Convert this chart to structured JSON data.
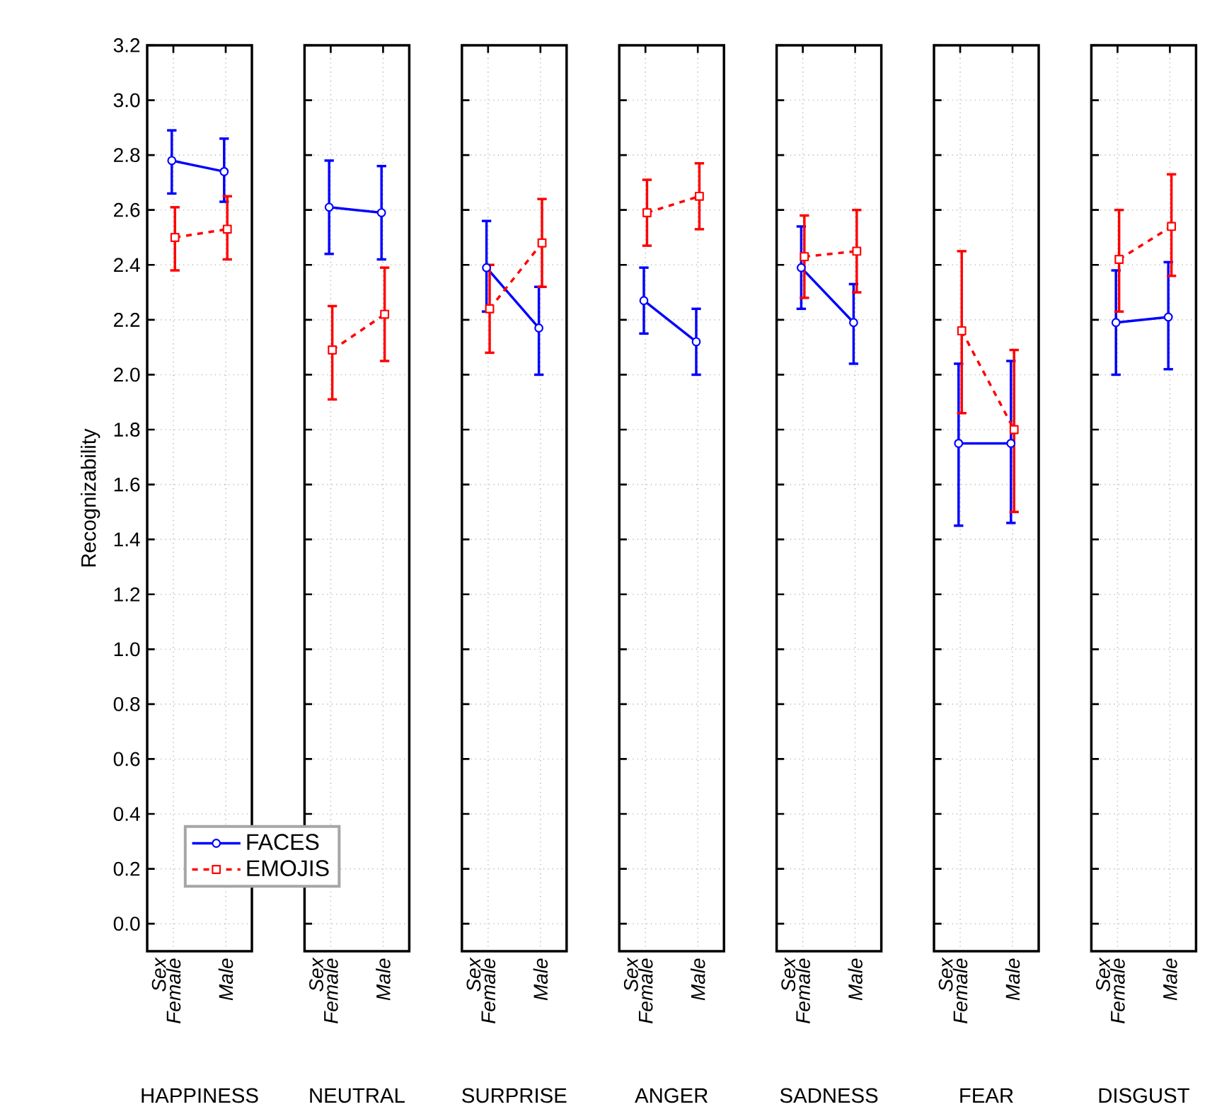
{
  "chart_data": [
    {
      "type": "line",
      "title": "HAPPINESS",
      "annotations": [
        "Sex"
      ],
      "ylabel": "Recognizability",
      "categories": [
        "Female",
        "Male"
      ],
      "ylim": [
        -0.1,
        3.2
      ],
      "yticks": [
        {
          "value": 0,
          "label": "0.0"
        },
        {
          "value": 0.2,
          "label": "0.2"
        },
        {
          "value": 0.4,
          "label": "0.4"
        },
        {
          "value": 0.6,
          "label": "0.6"
        },
        {
          "value": 0.8,
          "label": "0.8"
        },
        {
          "value": 1,
          "label": "1.0"
        },
        {
          "value": 1.2,
          "label": "1.2"
        },
        {
          "value": 1.4,
          "label": "1.4"
        },
        {
          "value": 1.6,
          "label": "1.6"
        },
        {
          "value": 1.8,
          "label": "1.8"
        },
        {
          "value": 2,
          "label": "2.0"
        },
        {
          "value": 2.2,
          "label": "2.2"
        },
        {
          "value": 2.4,
          "label": "2.4"
        },
        {
          "value": 2.6,
          "label": "2.6"
        },
        {
          "value": 2.8,
          "label": "2.8"
        },
        {
          "value": 3,
          "label": "3.0"
        },
        {
          "value": 3.2,
          "label": "3.2"
        }
      ],
      "grid": true,
      "legend": "bottom right",
      "series": [
        {
          "name": "FACES",
          "color": "#0000ff",
          "marker": "circle",
          "line_style": "solid",
          "values": [
            2.78,
            2.74
          ],
          "errors": [
            [
              2.66,
              2.89
            ],
            [
              2.63,
              2.86
            ]
          ]
        },
        {
          "name": "EMOJIS",
          "color": "#ff0000",
          "marker": "square",
          "line_style": "dashed",
          "values": [
            2.5,
            2.53
          ],
          "errors": [
            [
              2.38,
              2.61
            ],
            [
              2.42,
              2.65
            ]
          ]
        }
      ]
    },
    {
      "type": "line",
      "title": "NEUTRAL",
      "annotations": [
        "Sex"
      ],
      "categories": [
        "Female",
        "Male"
      ],
      "ylim": [
        -0.1,
        3.2
      ],
      "yticks": [
        0,
        0.2,
        0.4,
        0.6,
        0.8,
        1,
        1.2,
        1.4,
        1.6,
        1.8,
        2,
        2.2,
        2.4,
        2.6,
        2.8,
        3,
        3.2
      ],
      "tick_labels": "x",
      "grid": true,
      "series": [
        {
          "color": "#0000ff",
          "marker": "circle",
          "line_style": "solid",
          "values": [
            2.61,
            2.59
          ],
          "errors": [
            [
              2.44,
              2.78
            ],
            [
              2.42,
              2.76
            ]
          ]
        },
        {
          "color": "#ff0000",
          "marker": "square",
          "line_style": "dashed",
          "values": [
            2.09,
            2.22
          ],
          "errors": [
            [
              1.91,
              2.25
            ],
            [
              2.05,
              2.39
            ]
          ]
        }
      ]
    },
    {
      "type": "line",
      "title": "SURPRISE",
      "annotations": [
        "Sex"
      ],
      "categories": [
        "Female",
        "Male"
      ],
      "ylim": [
        -0.1,
        3.2
      ],
      "yticks": [
        0,
        0.2,
        0.4,
        0.6,
        0.8,
        1,
        1.2,
        1.4,
        1.6,
        1.8,
        2,
        2.2,
        2.4,
        2.6,
        2.8,
        3,
        3.2
      ],
      "tick_labels": "x",
      "grid": true,
      "series": [
        {
          "color": "#0000ff",
          "marker": "circle",
          "line_style": "solid",
          "values": [
            2.39,
            2.17
          ],
          "errors": [
            [
              2.23,
              2.56
            ],
            [
              2.0,
              2.32
            ]
          ]
        },
        {
          "color": "#ff0000",
          "marker": "square",
          "line_style": "dashed",
          "values": [
            2.24,
            2.48
          ],
          "errors": [
            [
              2.08,
              2.4
            ],
            [
              2.32,
              2.64
            ]
          ]
        }
      ]
    },
    {
      "type": "line",
      "title": "ANGER",
      "annotations": [
        "Sex"
      ],
      "categories": [
        "Female",
        "Male"
      ],
      "ylim": [
        -0.1,
        3.2
      ],
      "yticks": [
        0,
        0.2,
        0.4,
        0.6,
        0.8,
        1,
        1.2,
        1.4,
        1.6,
        1.8,
        2,
        2.2,
        2.4,
        2.6,
        2.8,
        3,
        3.2
      ],
      "tick_labels": "x",
      "grid": true,
      "series": [
        {
          "color": "#0000ff",
          "marker": "circle",
          "line_style": "solid",
          "values": [
            2.27,
            2.12
          ],
          "errors": [
            [
              2.15,
              2.39
            ],
            [
              2.0,
              2.24
            ]
          ]
        },
        {
          "color": "#ff0000",
          "marker": "square",
          "line_style": "dashed",
          "values": [
            2.59,
            2.65
          ],
          "errors": [
            [
              2.47,
              2.71
            ],
            [
              2.53,
              2.77
            ]
          ]
        }
      ]
    },
    {
      "type": "line",
      "title": "SADNESS",
      "annotations": [
        "Sex"
      ],
      "categories": [
        "Female",
        "Male"
      ],
      "ylim": [
        -0.1,
        3.2
      ],
      "yticks": [
        0,
        0.2,
        0.4,
        0.6,
        0.8,
        1,
        1.2,
        1.4,
        1.6,
        1.8,
        2,
        2.2,
        2.4,
        2.6,
        2.8,
        3,
        3.2
      ],
      "tick_labels": "x",
      "grid": true,
      "series": [
        {
          "color": "#0000ff",
          "marker": "circle",
          "line_style": "solid",
          "values": [
            2.39,
            2.19
          ],
          "errors": [
            [
              2.24,
              2.54
            ],
            [
              2.04,
              2.33
            ]
          ]
        },
        {
          "color": "#ff0000",
          "marker": "square",
          "line_style": "dashed",
          "values": [
            2.43,
            2.45
          ],
          "errors": [
            [
              2.28,
              2.58
            ],
            [
              2.3,
              2.6
            ]
          ]
        }
      ]
    },
    {
      "type": "line",
      "title": "FEAR",
      "annotations": [
        "Sex"
      ],
      "categories": [
        "Female",
        "Male"
      ],
      "ylim": [
        -0.1,
        3.2
      ],
      "yticks": [
        0,
        0.2,
        0.4,
        0.6,
        0.8,
        1,
        1.2,
        1.4,
        1.6,
        1.8,
        2,
        2.2,
        2.4,
        2.6,
        2.8,
        3,
        3.2
      ],
      "tick_labels": "x",
      "grid": true,
      "series": [
        {
          "color": "#0000ff",
          "marker": "circle",
          "line_style": "solid",
          "values": [
            1.75,
            1.75
          ],
          "errors": [
            [
              1.45,
              2.04
            ],
            [
              1.46,
              2.05
            ]
          ]
        },
        {
          "color": "#ff0000",
          "marker": "square",
          "line_style": "dashed",
          "values": [
            2.16,
            1.8
          ],
          "errors": [
            [
              1.86,
              2.45
            ],
            [
              1.5,
              2.09
            ]
          ]
        }
      ]
    },
    {
      "type": "line",
      "title": "DISGUST",
      "annotations": [
        "Sex"
      ],
      "categories": [
        "Female",
        "Male"
      ],
      "ylim": [
        -0.1,
        3.2
      ],
      "yticks": [
        0,
        0.2,
        0.4,
        0.6,
        0.8,
        1,
        1.2,
        1.4,
        1.6,
        1.8,
        2,
        2.2,
        2.4,
        2.6,
        2.8,
        3,
        3.2
      ],
      "tick_labels": "x",
      "grid": true,
      "series": [
        {
          "color": "#0000ff",
          "marker": "circle",
          "line_style": "solid",
          "values": [
            2.19,
            2.21
          ],
          "errors": [
            [
              2.0,
              2.38
            ],
            [
              2.02,
              2.41
            ]
          ]
        },
        {
          "color": "#ff0000",
          "marker": "square",
          "line_style": "dashed",
          "values": [
            2.42,
            2.54
          ],
          "errors": [
            [
              2.23,
              2.6
            ],
            [
              2.36,
              2.73
            ]
          ]
        }
      ]
    }
  ]
}
